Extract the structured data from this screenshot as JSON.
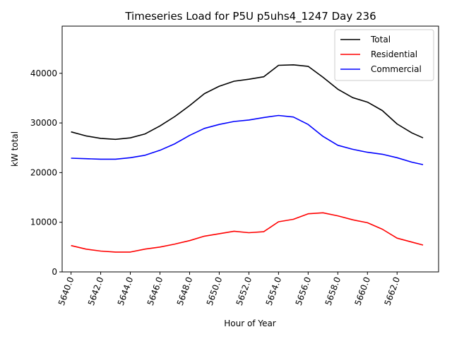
{
  "chart_data": {
    "type": "line",
    "title": "Timeseries Load for P5U p5uhs4_1247  Day 236",
    "xlabel": "Hour of Year",
    "ylabel": "kW total",
    "xlim": [
      5639.4,
      5664.8
    ],
    "ylim": [
      0,
      49500
    ],
    "x_ticks": [
      5640,
      5642,
      5644,
      5646,
      5648,
      5650,
      5652,
      5654,
      5656,
      5658,
      5660,
      5662
    ],
    "x_tick_labels": [
      "5640.0",
      "5642.0",
      "5644.0",
      "5646.0",
      "5648.0",
      "5650.0",
      "5652.0",
      "5654.0",
      "5656.0",
      "5658.0",
      "5660.0",
      "5662.0"
    ],
    "y_ticks": [
      0,
      10000,
      20000,
      30000,
      40000
    ],
    "y_tick_labels": [
      "0",
      "10000",
      "20000",
      "30000",
      "40000"
    ],
    "grid": false,
    "legend_position": "top-right",
    "x": [
      5640,
      5641,
      5642,
      5643,
      5644,
      5645,
      5646,
      5647,
      5648,
      5649,
      5650,
      5651,
      5652,
      5653,
      5654,
      5655,
      5656,
      5657,
      5658,
      5659,
      5660,
      5661,
      5662,
      5663,
      5663.75
    ],
    "series": [
      {
        "name": "Total",
        "color": "#000000",
        "values": [
          28200,
          27400,
          26900,
          26700,
          27000,
          27800,
          29400,
          31300,
          33500,
          35900,
          37400,
          38400,
          38800,
          39300,
          41600,
          41700,
          41400,
          39200,
          36800,
          35100,
          34200,
          32500,
          29800,
          28000,
          27000
        ]
      },
      {
        "name": "Residential",
        "color": "#ff0000",
        "values": [
          5300,
          4600,
          4200,
          4000,
          4000,
          4600,
          5000,
          5600,
          6300,
          7200,
          7700,
          8200,
          7900,
          8100,
          10100,
          10600,
          11700,
          11900,
          11300,
          10500,
          9900,
          8600,
          6800,
          6000,
          5400
        ]
      },
      {
        "name": "Commercial",
        "color": "#0000ff",
        "values": [
          22900,
          22800,
          22700,
          22700,
          23000,
          23500,
          24500,
          25800,
          27500,
          28900,
          29700,
          30300,
          30600,
          31100,
          31500,
          31200,
          29700,
          27300,
          25500,
          24700,
          24100,
          23700,
          23000,
          22100,
          21600
        ]
      }
    ]
  }
}
